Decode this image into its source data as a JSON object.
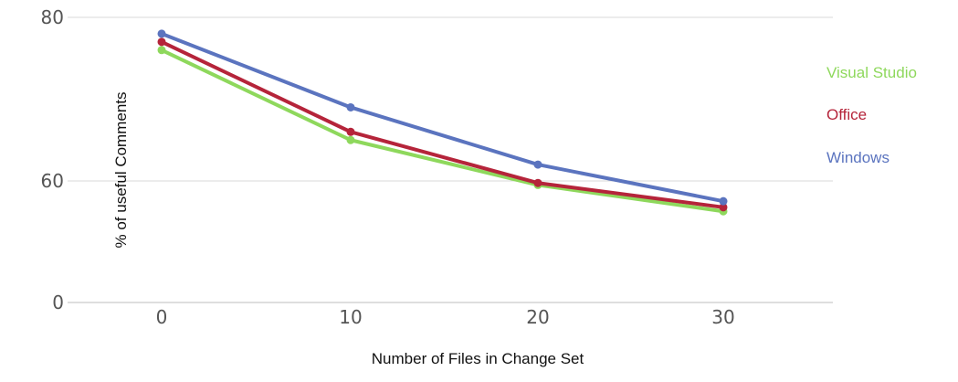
{
  "chart_data": {
    "type": "line",
    "title": "",
    "xlabel": "Number of Files in Change Set",
    "ylabel": "% of useful Comments",
    "x": [
      0,
      10,
      20,
      30
    ],
    "x_tick_labels": [
      "0",
      "10",
      "20",
      "30"
    ],
    "y_tick_labels": [
      "0",
      "60",
      "80"
    ],
    "grid": true,
    "legend_position": "right",
    "series": [
      {
        "name": "Visual Studio",
        "color": "#8ed85c",
        "values": [
          76,
          65,
          58,
          45
        ]
      },
      {
        "name": "Office",
        "color": "#b5243a",
        "values": [
          77,
          66,
          59,
          47
        ]
      },
      {
        "name": "Windows",
        "color": "#5b74bf",
        "values": [
          78,
          69,
          62,
          50
        ]
      }
    ]
  }
}
